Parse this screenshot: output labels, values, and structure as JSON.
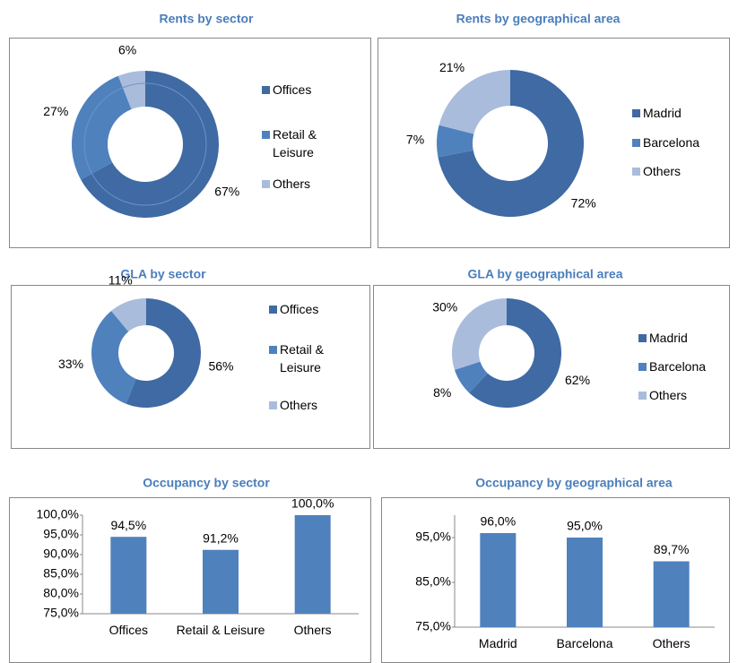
{
  "chart_data": [
    {
      "type": "donut",
      "title": "Rents by sector",
      "categories": [
        "Offices",
        "Retail & Leisure",
        "Others"
      ],
      "values": [
        67,
        27,
        6
      ],
      "value_labels": [
        "67%",
        "27%",
        "6%"
      ],
      "colors": [
        "#3f6aa3",
        "#4f81bd",
        "#a9bcdc"
      ]
    },
    {
      "type": "donut",
      "title": "Rents by geographical area",
      "categories": [
        "Madrid",
        "Barcelona",
        "Others"
      ],
      "values": [
        72,
        7,
        21
      ],
      "value_labels": [
        "72%",
        "7%",
        "21%"
      ],
      "colors": [
        "#3f6aa3",
        "#4f81bd",
        "#a9bcdc"
      ]
    },
    {
      "type": "donut",
      "title": "GLA by sector",
      "categories": [
        "Offices",
        "Retail & Leisure",
        "Others"
      ],
      "values": [
        56,
        33,
        11
      ],
      "value_labels": [
        "56%",
        "33%",
        "11%"
      ],
      "colors": [
        "#3f6aa3",
        "#4f81bd",
        "#a9bcdc"
      ]
    },
    {
      "type": "donut",
      "title": "GLA by geographical area",
      "categories": [
        "Madrid",
        "Barcelona",
        "Others"
      ],
      "values": [
        62,
        8,
        30
      ],
      "value_labels": [
        "62%",
        "8%",
        "30%"
      ],
      "colors": [
        "#3f6aa3",
        "#4f81bd",
        "#a9bcdc"
      ]
    },
    {
      "type": "bar",
      "title": "Occupancy by sector",
      "categories": [
        "Offices",
        "Retail & Leisure",
        "Others"
      ],
      "values": [
        94.5,
        91.2,
        100.0
      ],
      "value_labels": [
        "94,5%",
        "91,2%",
        "100,0%"
      ],
      "color": "#4f81bd",
      "ylim": [
        75,
        100
      ],
      "yticks": [
        {
          "value": 75,
          "label": "75,0%"
        },
        {
          "value": 80,
          "label": "80,0%"
        },
        {
          "value": 85,
          "label": "85,0%"
        },
        {
          "value": 90,
          "label": "90,0%"
        },
        {
          "value": 95,
          "label": "95,0%"
        },
        {
          "value": 100,
          "label": "100,0%"
        }
      ]
    },
    {
      "type": "bar",
      "title": "Occupancy by geographical area",
      "categories": [
        "Madrid",
        "Barcelona",
        "Others"
      ],
      "values": [
        96.0,
        95.0,
        89.7
      ],
      "value_labels": [
        "96,0%",
        "95,0%",
        "89,7%"
      ],
      "color": "#4f81bd",
      "ylim": [
        75,
        100
      ],
      "yticks": [
        {
          "value": 75,
          "label": "75,0%"
        },
        {
          "value": 85,
          "label": "85,0%"
        },
        {
          "value": 95,
          "label": "95,0%"
        }
      ]
    }
  ]
}
